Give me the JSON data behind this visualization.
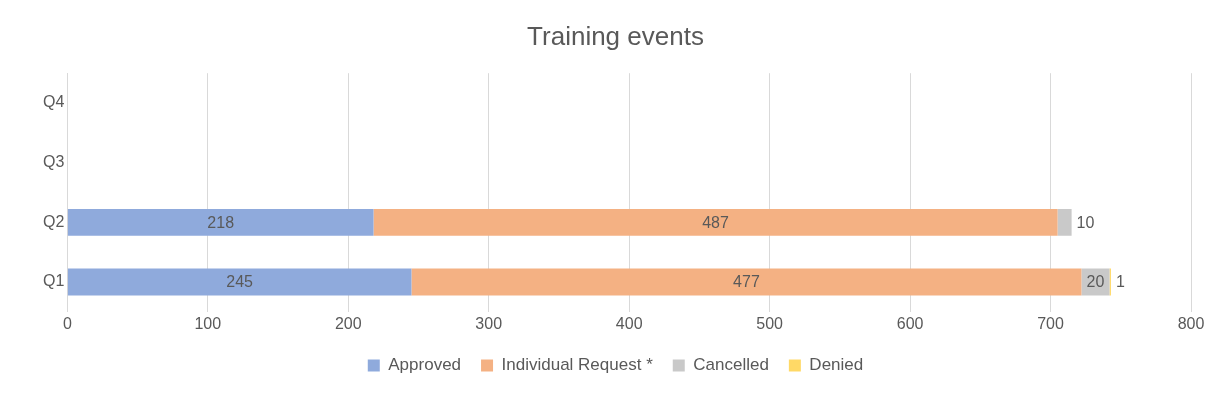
{
  "chart_data": {
    "type": "bar",
    "title": "Training events",
    "orientation": "horizontal",
    "stacked": true,
    "categories": [
      "Q4",
      "Q3",
      "Q2",
      "Q1"
    ],
    "series": [
      {
        "name": "Approved",
        "color": "#8faadc",
        "values": [
          null,
          null,
          218,
          245
        ]
      },
      {
        "name": "Individual Request *",
        "color": "#f4b183",
        "values": [
          null,
          null,
          487,
          477
        ]
      },
      {
        "name": "Cancelled",
        "color": "#c9c9c9",
        "values": [
          null,
          null,
          10,
          20
        ]
      },
      {
        "name": "Denied",
        "color": "#ffd966",
        "values": [
          null,
          null,
          null,
          1
        ]
      }
    ],
    "xlim": [
      0,
      800
    ],
    "xticks": [
      0,
      100,
      200,
      300,
      400,
      500,
      600,
      700,
      800
    ],
    "grid": "x",
    "legend": "bottom",
    "data_labels": true
  }
}
